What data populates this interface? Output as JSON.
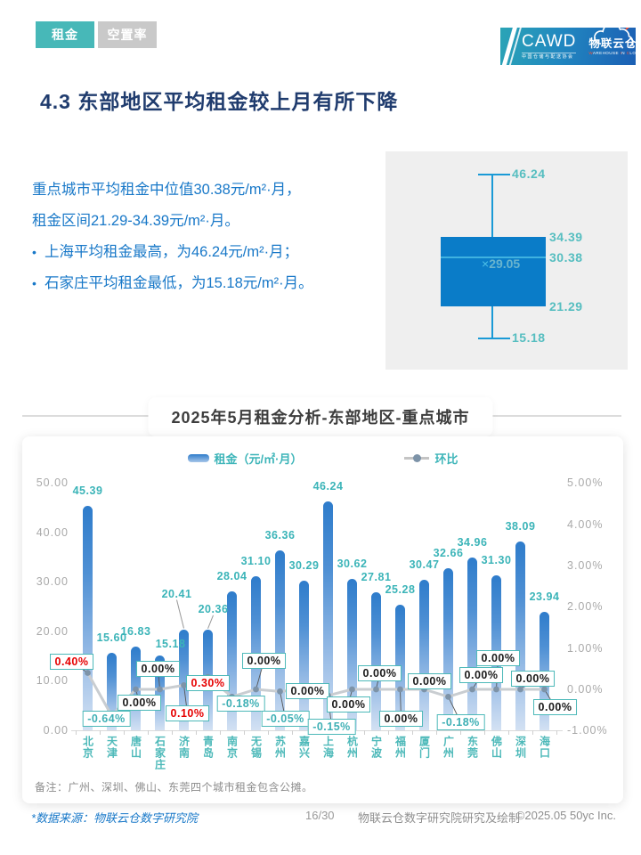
{
  "header": {
    "tabs": [
      {
        "label": "租金",
        "active": true
      },
      {
        "label": "空置率",
        "active": false
      }
    ]
  },
  "logo": {
    "cawd": "CAWD",
    "cawd_sub": "中国仓储与配送协会",
    "brand": "物联云仓",
    "brand_sub_parts": [
      "W",
      "AREHOUSE ",
      "I",
      "N ",
      "C",
      "LOUD"
    ]
  },
  "page_title": "4.3 东部地区平均租金较上月有所下降",
  "summary": {
    "line1": "重点城市平均租金中位值30.38元/m²·月，",
    "line2": "租金区间21.29-34.39元/m²·月。",
    "bullet1": "上海平均租金最高，为46.24元/m²·月；",
    "bullet2": "石家庄平均租金最低，为15.18元/m²·月。"
  },
  "chart_data": [
    {
      "type": "bar",
      "title": "2025年5月租金分析-东部地区-重点城市",
      "categories": [
        "北京",
        "天津",
        "唐山",
        "石家庄",
        "济南",
        "青岛",
        "南京",
        "无锡",
        "苏州",
        "嘉兴",
        "上海",
        "杭州",
        "宁波",
        "福州",
        "厦门",
        "广州",
        "东莞",
        "佛山",
        "深圳",
        "海口"
      ],
      "series": [
        {
          "name": "租金（元/㎡·月）",
          "type": "bar",
          "axis": "left",
          "values": [
            45.39,
            15.6,
            16.83,
            15.18,
            20.41,
            20.36,
            28.04,
            31.1,
            36.36,
            30.29,
            46.24,
            30.62,
            27.81,
            25.28,
            30.47,
            32.66,
            34.96,
            31.3,
            38.09,
            23.94
          ]
        },
        {
          "name": "环比",
          "type": "line",
          "axis": "right",
          "unit": "%",
          "values": [
            0.4,
            -0.64,
            0.0,
            0.0,
            0.1,
            0.3,
            -0.18,
            0.0,
            -0.05,
            0.0,
            -0.15,
            0.0,
            0.0,
            0.0,
            0.0,
            -0.18,
            0.0,
            0.0,
            0.0,
            0.0
          ]
        }
      ],
      "left_axis": {
        "min": 0,
        "max": 50,
        "ticks": [
          "0.00",
          "10.00",
          "20.00",
          "30.00",
          "40.00",
          "50.00"
        ]
      },
      "right_axis": {
        "min": -1,
        "max": 5,
        "ticks": [
          "-1.00%",
          "0.00%",
          "1.00%",
          "2.00%",
          "3.00%",
          "4.00%",
          "5.00%"
        ]
      },
      "legend_position": "top",
      "grid": false
    },
    {
      "type": "boxplot",
      "stats": {
        "max": 46.24,
        "q3": 34.39,
        "median": 30.38,
        "mean": 29.05,
        "q1": 21.29,
        "min": 15.18
      },
      "mean_prefix": "×"
    }
  ],
  "note": "备注：广州、深圳、佛山、东莞四个城市租金包含公摊。",
  "footer": {
    "source": "*数据来源：物联云仓数字研究院",
    "page": "16/30",
    "credit": "物联云仓数字研究院研究及绘制",
    "copyright": "©2025.05 50yc Inc."
  },
  "colors": {
    "accent_teal": "#47b8b8",
    "bar_top": "#2e7ccb",
    "bar_bottom": "#d3e1f3",
    "boxplot_fill": "#0a7cc8",
    "positive": "#e60000",
    "negative": "#3fb0b5",
    "zero": "#1a1a1a",
    "title_navy": "#203c6e",
    "body_blue": "#1878c8"
  }
}
